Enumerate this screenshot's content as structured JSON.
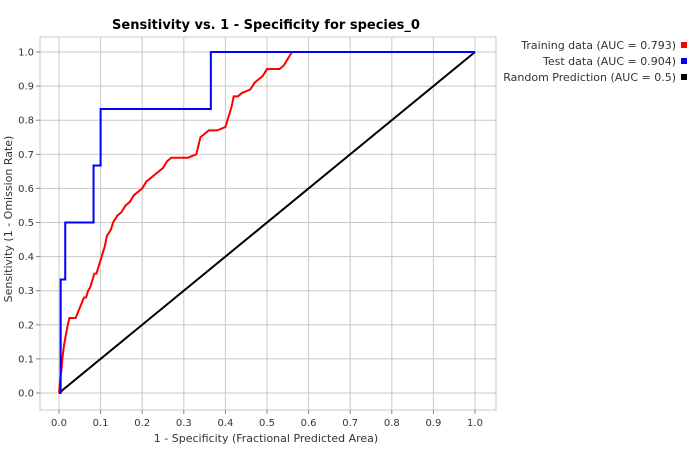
{
  "chart_data": {
    "type": "line",
    "title": "Sensitivity vs. 1 - Specificity for species_0",
    "xlabel": "1 - Specificity  (Fractional Predicted Area)",
    "ylabel": "Sensitivity  (1 - Omission Rate)",
    "xlim": [
      0,
      1
    ],
    "ylim": [
      0,
      1
    ],
    "x_ticks": [
      "0.0",
      "0.1",
      "0.2",
      "0.3",
      "0.4",
      "0.5",
      "0.6",
      "0.7",
      "0.8",
      "0.9",
      "1.0"
    ],
    "y_ticks": [
      "0.0",
      "0.1",
      "0.2",
      "0.3",
      "0.4",
      "0.5",
      "0.6",
      "0.7",
      "0.8",
      "0.9",
      "1.0"
    ],
    "grid": true,
    "legend_position": "top-right-outside",
    "series": [
      {
        "name": "Training data (AUC = 0.793)",
        "color": "#ff0000",
        "x": [
          0,
          0.002,
          0.004,
          0.006,
          0.008,
          0.01,
          0.012,
          0.015,
          0.018,
          0.021,
          0.025,
          0.03,
          0.035,
          0.04,
          0.05,
          0.06,
          0.065,
          0.07,
          0.075,
          0.08,
          0.085,
          0.09,
          0.095,
          0.1,
          0.105,
          0.11,
          0.115,
          0.12,
          0.125,
          0.13,
          0.14,
          0.15,
          0.16,
          0.17,
          0.18,
          0.19,
          0.2,
          0.21,
          0.22,
          0.23,
          0.24,
          0.25,
          0.26,
          0.27,
          0.28,
          0.29,
          0.31,
          0.33,
          0.34,
          0.35,
          0.36,
          0.38,
          0.4,
          0.405,
          0.41,
          0.415,
          0.42,
          0.43,
          0.44,
          0.46,
          0.47,
          0.48,
          0.49,
          0.5,
          0.53,
          0.54,
          0.545,
          0.55,
          0.555,
          0.56,
          1.0
        ],
        "y": [
          0,
          0.03,
          0.05,
          0.07,
          0.1,
          0.12,
          0.14,
          0.16,
          0.18,
          0.2,
          0.22,
          0.22,
          0.22,
          0.22,
          0.25,
          0.28,
          0.28,
          0.3,
          0.31,
          0.33,
          0.35,
          0.35,
          0.37,
          0.39,
          0.41,
          0.43,
          0.46,
          0.47,
          0.48,
          0.5,
          0.52,
          0.53,
          0.55,
          0.56,
          0.58,
          0.59,
          0.6,
          0.62,
          0.63,
          0.64,
          0.65,
          0.66,
          0.68,
          0.69,
          0.69,
          0.69,
          0.69,
          0.7,
          0.75,
          0.76,
          0.77,
          0.77,
          0.78,
          0.8,
          0.82,
          0.84,
          0.87,
          0.87,
          0.88,
          0.89,
          0.91,
          0.92,
          0.93,
          0.95,
          0.95,
          0.96,
          0.97,
          0.98,
          0.99,
          1.0,
          1.0
        ]
      },
      {
        "name": "Test data (AUC = 0.904)",
        "color": "#0000ff",
        "x": [
          0,
          0.004,
          0.004,
          0.015,
          0.015,
          0.083,
          0.083,
          0.1,
          0.1,
          0.365,
          0.365,
          1.0
        ],
        "y": [
          0,
          0,
          0.333,
          0.333,
          0.5,
          0.5,
          0.667,
          0.667,
          0.833,
          0.833,
          1.0,
          1.0
        ]
      },
      {
        "name": "Random Prediction (AUC = 0.5)",
        "color": "#000000",
        "x": [
          0,
          1
        ],
        "y": [
          0,
          1
        ]
      }
    ]
  }
}
